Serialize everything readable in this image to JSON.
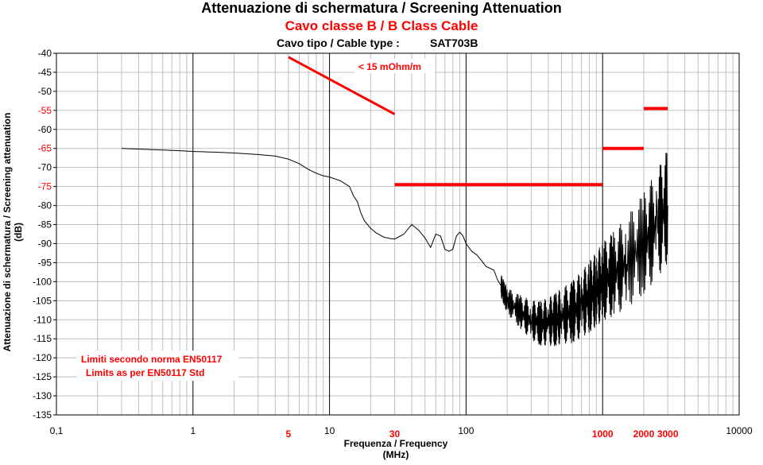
{
  "chart_data": {
    "type": "line",
    "title": "Attenuazione di schermatura / Screening Attenuation",
    "subtitle": "Cavo classe B / B Class Cable",
    "cable_type_label": "Cavo tipo / Cable type :",
    "cable_type_value": "SAT703B",
    "xlabel_line1": "Frequenza / Frequency",
    "xlabel_line2": "(MHz)",
    "ylabel_line1": "Attenuazione di schermatura / Screening attenuation",
    "ylabel_line2": "(dB)",
    "x_scale": "log",
    "xlim": [
      0.1,
      10000
    ],
    "ylim": [
      -135,
      -40
    ],
    "y_ticks": [
      -40,
      -45,
      -50,
      -55,
      -60,
      -65,
      -70,
      -75,
      -80,
      -85,
      -90,
      -95,
      -100,
      -105,
      -110,
      -115,
      -120,
      -125,
      -130,
      -135
    ],
    "y_ticks_red": [
      -55,
      -65,
      -75
    ],
    "x_ticks_black": [
      {
        "value": 0.1,
        "label": "0,1"
      },
      {
        "value": 1,
        "label": "1"
      },
      {
        "value": 10,
        "label": "10"
      },
      {
        "value": 100,
        "label": "100"
      },
      {
        "value": 10000,
        "label": "10000"
      }
    ],
    "x_ticks_red": [
      {
        "value": 5,
        "label": "5"
      },
      {
        "value": 30,
        "label": "30"
      },
      {
        "value": 1000,
        "label": "1000"
      },
      {
        "value": 2000,
        "label": "2000"
      },
      {
        "value": 3000,
        "label": "3000"
      }
    ],
    "grid": true,
    "colors": {
      "measurement": "#000000",
      "limits": "#ff0000",
      "grid_minor": "#c0c0c0",
      "grid_major": "#000000"
    },
    "series": [
      {
        "style": "measurement",
        "x": [
          0.3,
          0.5,
          0.8,
          1,
          1.5,
          2,
          3,
          4,
          5,
          6,
          7,
          8,
          9,
          10,
          12,
          14,
          15,
          16,
          17,
          18,
          20,
          22,
          25,
          28,
          30,
          35,
          40,
          45,
          50,
          55,
          60,
          65,
          70,
          75,
          80,
          85,
          90,
          95,
          100,
          110,
          120,
          130,
          140,
          150,
          160,
          170,
          180,
          190,
          200,
          250,
          300,
          350,
          400,
          450,
          500,
          600,
          700,
          800,
          900,
          1000,
          1200,
          1500,
          2000,
          2500,
          3000
        ],
        "y": [
          -65,
          -65.3,
          -65.6,
          -65.8,
          -66,
          -66.2,
          -66.6,
          -67,
          -67.8,
          -69,
          -70.5,
          -71.5,
          -72.2,
          -72.5,
          -73.5,
          -75,
          -77.5,
          -79,
          -82,
          -84,
          -86,
          -87.2,
          -88.3,
          -88.7,
          -88.8,
          -87.5,
          -85,
          -86.5,
          -88.5,
          -91,
          -87.5,
          -88,
          -91.5,
          -92,
          -91.5,
          -88,
          -87,
          -88,
          -90,
          -92,
          -93,
          -94.5,
          -96,
          -96.5,
          -97,
          -99.5,
          -101,
          -103,
          -105,
          -108,
          -110,
          -111,
          -110.5,
          -110,
          -109,
          -108,
          -106,
          -104,
          -102,
          -100,
          -98,
          -95,
          -90,
          -85,
          -80
        ],
        "oscillating_from_x": 180
      }
    ],
    "limit_lines": [
      {
        "label": "< 15 mOhm/m",
        "x": [
          5,
          30
        ],
        "y": [
          -41,
          -56
        ]
      },
      {
        "x": [
          30,
          1000
        ],
        "y": [
          -74.5,
          -74.5
        ]
      },
      {
        "x": [
          1000,
          2000
        ],
        "y": [
          -65,
          -65
        ]
      },
      {
        "x": [
          2000,
          3000
        ],
        "y": [
          -54.5,
          -54.5
        ]
      }
    ],
    "annotations": [
      "Limiti secondo norma EN50117",
      "Limits as per EN50117 Std"
    ]
  }
}
